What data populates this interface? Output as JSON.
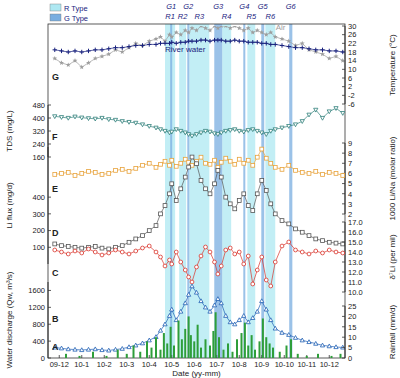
{
  "chart_data": [
    {
      "type": "line",
      "label": "G",
      "x": [
        -0.2,
        0.1,
        0.4,
        0.7,
        1.0,
        1.3,
        1.6,
        1.9,
        2.2,
        2.5,
        2.8,
        3.1,
        3.4,
        3.7,
        4.0,
        4.3,
        4.5,
        4.7,
        4.9,
        5.0,
        5.2,
        5.4,
        5.6,
        5.75,
        5.9,
        6.1,
        6.3,
        6.5,
        6.7,
        6.9,
        7.05,
        7.2,
        7.4,
        7.6,
        7.8,
        8.0,
        8.2,
        8.4,
        8.6,
        8.8,
        9.0,
        9.2,
        9.4,
        9.6,
        9.9,
        10.2,
        10.5,
        10.8,
        11.1,
        11.4,
        11.7,
        12.0,
        12.3,
        12.6
      ],
      "xlim": [
        -0.5,
        12.7
      ],
      "y2lim": [
        -6,
        30
      ],
      "y2ticks": [
        -6,
        -2,
        2,
        6,
        10,
        14,
        18,
        22,
        26,
        30
      ],
      "y2label": "Temperature (°C)",
      "tick_labels": "y",
      "legend": "upper left",
      "band_types": [
        {
          "name": "R Type",
          "color": "#aee8f2"
        },
        {
          "name": "G Type",
          "color": "#79aee0"
        }
      ],
      "bands": [
        {
          "label": "R1",
          "kind": "R Type",
          "x0": 4.7,
          "x1": 5.15
        },
        {
          "label": "R2",
          "kind": "R Type",
          "x0": 5.33,
          "x1": 5.64
        },
        {
          "label": "R3",
          "kind": "R Type",
          "x0": 5.78,
          "x1": 6.67
        },
        {
          "label": "R4",
          "kind": "R Type",
          "x0": 7.24,
          "x1": 7.64
        },
        {
          "label": "R5",
          "kind": "R Type",
          "x0": 8.36,
          "x1": 8.71
        },
        {
          "label": "R6",
          "kind": "R Type",
          "x0": 9.16,
          "x1": 9.6
        },
        {
          "label": "G1",
          "kind": "G Type",
          "x0": 4.93,
          "x1": 5.02
        },
        {
          "label": "G2",
          "kind": "G Type",
          "x0": 5.69,
          "x1": 5.78
        },
        {
          "label": "G3",
          "kind": "G Type",
          "x0": 6.89,
          "x1": 7.24
        },
        {
          "label": "G4",
          "kind": "G Type",
          "x0": 8.18,
          "x1": 8.27
        },
        {
          "label": "G5",
          "kind": "G Type",
          "x0": 8.98,
          "x1": 9.11
        },
        {
          "label": "G6",
          "kind": "G Type",
          "x0": 10.22,
          "x1": 10.36
        }
      ],
      "series": [
        {
          "name": "Air",
          "color": "#9e9e9e",
          "marker": "star",
          "axis": "y2",
          "values": [
            15,
            13,
            12,
            14,
            11,
            13,
            15,
            16,
            17,
            19,
            18,
            20,
            22,
            21,
            23,
            24,
            25,
            23,
            26,
            25,
            27,
            26,
            28,
            27,
            29,
            28,
            30,
            29,
            28,
            30,
            29,
            30,
            30,
            29,
            30,
            29,
            28,
            29,
            27,
            28,
            27,
            26,
            27,
            25,
            24,
            23,
            21,
            22,
            19,
            18,
            17,
            15,
            16,
            14
          ]
        },
        {
          "name": "River water",
          "color": "#1a237e",
          "marker": "cross",
          "axis": "y2",
          "values": [
            19,
            18.5,
            18,
            18.5,
            18,
            18.5,
            19,
            19,
            19.5,
            20,
            20,
            20.5,
            21,
            21,
            21.5,
            21.5,
            22,
            22,
            22,
            22.5,
            22,
            22.5,
            22.5,
            23,
            23,
            23,
            23.5,
            23.5,
            23,
            23.5,
            23.5,
            23.5,
            23,
            23,
            23.5,
            23,
            23,
            22.5,
            22.5,
            22.5,
            22,
            22,
            21.5,
            21.5,
            21,
            20.5,
            20,
            20,
            19.5,
            19,
            19,
            18.5,
            18.5,
            18
          ]
        }
      ]
    },
    {
      "type": "line",
      "label": "F",
      "x": [
        -0.2,
        0.1,
        0.4,
        0.7,
        1.0,
        1.3,
        1.6,
        1.9,
        2.2,
        2.5,
        2.8,
        3.1,
        3.4,
        3.7,
        4.0,
        4.3,
        4.5,
        4.7,
        4.9,
        5.0,
        5.2,
        5.4,
        5.6,
        5.75,
        5.9,
        6.1,
        6.3,
        6.5,
        6.7,
        6.9,
        7.05,
        7.2,
        7.4,
        7.6,
        7.8,
        8.0,
        8.2,
        8.4,
        8.6,
        8.8,
        9.0,
        9.2,
        9.4,
        9.6,
        9.9,
        10.2,
        10.5,
        10.8,
        11.1,
        11.4,
        11.7,
        12.0,
        12.3,
        12.6
      ],
      "xlim": [
        -0.5,
        12.7
      ],
      "ylim": [
        160,
        480
      ],
      "yticks": [
        160,
        240,
        320,
        400,
        480
      ],
      "ylabel": "TDS (mg/L)",
      "tick_labels": "y",
      "series": [
        {
          "color": "#2f7f7a",
          "marker": "triangle-down",
          "values": [
            410,
            405,
            400,
            408,
            402,
            398,
            395,
            400,
            392,
            388,
            380,
            375,
            370,
            360,
            350,
            340,
            330,
            320,
            310,
            315,
            330,
            320,
            310,
            300,
            290,
            300,
            310,
            320,
            315,
            305,
            300,
            310,
            320,
            325,
            330,
            320,
            315,
            325,
            330,
            320,
            310,
            300,
            320,
            330,
            340,
            350,
            360,
            380,
            420,
            450,
            400,
            440,
            460,
            430
          ]
        }
      ]
    },
    {
      "type": "line",
      "label": "E",
      "x": [
        -0.2,
        0.1,
        0.4,
        0.7,
        1.0,
        1.3,
        1.6,
        1.9,
        2.2,
        2.5,
        2.8,
        3.1,
        3.4,
        3.7,
        4.0,
        4.3,
        4.5,
        4.7,
        4.9,
        5.0,
        5.2,
        5.4,
        5.6,
        5.75,
        5.9,
        6.1,
        6.3,
        6.5,
        6.7,
        6.9,
        7.05,
        7.2,
        7.4,
        7.6,
        7.8,
        8.0,
        8.2,
        8.4,
        8.6,
        8.8,
        9.0,
        9.2,
        9.4,
        9.6,
        9.9,
        10.2,
        10.5,
        10.8,
        11.1,
        11.4,
        11.7,
        12.0,
        12.3,
        12.6
      ],
      "xlim": [
        -0.5,
        12.7
      ],
      "y2lim": [
        2,
        9
      ],
      "y2ticks": [
        2,
        3,
        4,
        5,
        6,
        7,
        8,
        9
      ],
      "y2label": "1000 Li/Na (molar ratio)",
      "tick_labels": "y",
      "series": [
        {
          "color": "#e8a33c",
          "marker": "square",
          "axis": "y2",
          "values": [
            5.9,
            6.0,
            6.1,
            5.8,
            6.0,
            6.2,
            6.1,
            5.9,
            6.0,
            6.3,
            6.4,
            6.2,
            6.5,
            6.8,
            7.0,
            6.6,
            6.9,
            7.2,
            6.8,
            7.3,
            6.7,
            7.0,
            7.4,
            7.1,
            6.8,
            7.2,
            7.6,
            7.0,
            6.9,
            7.3,
            6.6,
            7.1,
            7.5,
            7.2,
            6.9,
            7.4,
            7.0,
            7.3,
            6.8,
            7.6,
            8.4,
            7.5,
            7.0,
            6.6,
            6.4,
            6.8,
            6.3,
            6.1,
            6.0,
            6.2,
            5.9,
            6.1,
            6.0,
            5.8
          ]
        }
      ]
    },
    {
      "type": "line",
      "label": "D",
      "x": [
        -0.2,
        0.1,
        0.4,
        0.7,
        1.0,
        1.3,
        1.6,
        1.9,
        2.2,
        2.5,
        2.8,
        3.1,
        3.4,
        3.7,
        4.0,
        4.3,
        4.5,
        4.7,
        4.9,
        5.0,
        5.2,
        5.4,
        5.6,
        5.75,
        5.9,
        6.1,
        6.3,
        6.5,
        6.7,
        6.9,
        7.05,
        7.2,
        7.4,
        7.6,
        7.8,
        8.0,
        8.2,
        8.4,
        8.6,
        8.8,
        9.0,
        9.2,
        9.4,
        9.6,
        9.9,
        10.2,
        10.5,
        10.8,
        11.1,
        11.4,
        11.7,
        12.0,
        12.3,
        12.6
      ],
      "xlim": [
        -0.5,
        12.7
      ],
      "ylim": [
        0,
        700
      ],
      "yticks": [
        100,
        200,
        300,
        400
      ],
      "ylabel": "Li flux (mg/d)",
      "tick_labels": "y",
      "series": [
        {
          "color": "#555555",
          "marker": "square",
          "values": [
            120,
            110,
            105,
            100,
            95,
            100,
            105,
            95,
            90,
            100,
            110,
            130,
            150,
            170,
            200,
            230,
            300,
            350,
            420,
            480,
            380,
            450,
            520,
            580,
            640,
            600,
            500,
            450,
            420,
            480,
            560,
            520,
            400,
            360,
            330,
            380,
            420,
            350,
            320,
            420,
            500,
            440,
            360,
            300,
            260,
            240,
            210,
            190,
            170,
            150,
            140,
            130,
            125,
            120
          ]
        }
      ]
    },
    {
      "type": "line",
      "label": "C",
      "x": [
        -0.2,
        0.1,
        0.4,
        0.7,
        1.0,
        1.3,
        1.6,
        1.9,
        2.2,
        2.5,
        2.8,
        3.1,
        3.4,
        3.7,
        4.0,
        4.3,
        4.5,
        4.7,
        4.9,
        5.0,
        5.2,
        5.4,
        5.6,
        5.75,
        5.9,
        6.1,
        6.3,
        6.5,
        6.7,
        6.9,
        7.05,
        7.2,
        7.4,
        7.6,
        7.8,
        8.0,
        8.2,
        8.4,
        8.6,
        8.8,
        9.0,
        9.2,
        9.4,
        9.6,
        9.9,
        10.2,
        10.5,
        10.8,
        11.1,
        11.4,
        11.7,
        12.0,
        12.3,
        12.6
      ],
      "xlim": [
        -0.5,
        12.7
      ],
      "y2lim": [
        10,
        17
      ],
      "y2ticks": [
        {
          "value": 10,
          "label": "10.0"
        },
        {
          "value": 11,
          "label": "11.0"
        },
        {
          "value": 12,
          "label": "12.0"
        },
        {
          "value": 13,
          "label": "13.0"
        },
        {
          "value": 14,
          "label": "14.0"
        },
        {
          "value": 15,
          "label": "15.0"
        },
        {
          "value": 16,
          "label": "16.0"
        },
        {
          "value": 17,
          "label": "17.0"
        }
      ],
      "y2label": "δ⁷Li (per mil)",
      "tick_labels": "y",
      "series": [
        {
          "color": "#d9342b",
          "marker": "circle",
          "axis": "y2",
          "values": [
            14.2,
            14.0,
            13.8,
            14.1,
            13.9,
            14.3,
            14.0,
            13.7,
            13.9,
            14.2,
            14.0,
            13.8,
            14.1,
            14.4,
            14.6,
            14.0,
            13.5,
            12.6,
            13.2,
            12.8,
            14.0,
            13.0,
            12.2,
            11.5,
            11.0,
            12.5,
            13.6,
            14.5,
            14.0,
            13.0,
            11.8,
            12.6,
            14.2,
            14.4,
            13.8,
            14.0,
            12.8,
            13.6,
            10.8,
            12.2,
            13.5,
            11.2,
            10.6,
            13.0,
            14.6,
            15.0,
            14.2,
            14.0,
            13.8,
            14.1,
            13.9,
            14.2,
            14.0,
            13.9
          ]
        }
      ]
    },
    {
      "type": "line",
      "label": "B",
      "x": [
        -0.2,
        0.1,
        0.4,
        0.7,
        1.0,
        1.3,
        1.6,
        1.9,
        2.2,
        2.5,
        2.8,
        3.1,
        3.4,
        3.7,
        4.0,
        4.3,
        4.5,
        4.7,
        4.9,
        5.0,
        5.2,
        5.4,
        5.6,
        5.75,
        5.9,
        6.1,
        6.3,
        6.5,
        6.7,
        6.9,
        7.05,
        7.2,
        7.4,
        7.6,
        7.8,
        8.0,
        8.2,
        8.4,
        8.6,
        8.8,
        9.0,
        9.2,
        9.4,
        9.6,
        9.9,
        10.2,
        10.5,
        10.8,
        11.1,
        11.4,
        11.7,
        12.0,
        12.3,
        12.6
      ],
      "xlim": [
        -0.5,
        12.7
      ],
      "ylim": [
        0,
        1800
      ],
      "yticks": [
        0,
        400,
        800,
        1200,
        1600
      ],
      "ylabel": "Water discharge (Qw, m³/s)",
      "tick_labels": "y",
      "series": [
        {
          "color": "#1f5fb4",
          "marker": "triangle",
          "values": [
            250,
            230,
            210,
            200,
            190,
            200,
            210,
            190,
            180,
            200,
            220,
            260,
            300,
            350,
            420,
            500,
            650,
            800,
            1000,
            1150,
            900,
            1100,
            1300,
            1500,
            1700,
            1550,
            1350,
            1200,
            1100,
            1250,
            1400,
            1300,
            1000,
            850,
            800,
            900,
            1000,
            850,
            950,
            1100,
            1350,
            1150,
            900,
            700,
            600,
            550,
            480,
            420,
            380,
            340,
            300,
            280,
            260,
            250
          ]
        }
      ]
    },
    {
      "type": "bar",
      "label": "A",
      "x": [
        0.3,
        0.9,
        1.5,
        2.1,
        2.6,
        3.0,
        3.3,
        3.6,
        3.9,
        4.1,
        4.3,
        4.5,
        4.65,
        4.8,
        4.95,
        5.1,
        5.3,
        5.45,
        5.6,
        5.75,
        5.85,
        6.0,
        6.15,
        6.3,
        6.5,
        6.7,
        6.85,
        6.95,
        7.1,
        7.3,
        7.5,
        7.7,
        7.9,
        8.1,
        8.25,
        8.4,
        8.55,
        8.7,
        8.9,
        9.05,
        9.2,
        9.35,
        9.5,
        9.8,
        10.1,
        10.3,
        10.6,
        11.0,
        11.5,
        12.1,
        12.5
      ],
      "xlim": [
        -0.5,
        12.7
      ],
      "xticks": [
        {
          "value": 0,
          "label": "09-12"
        },
        {
          "value": 1,
          "label": "10-1"
        },
        {
          "value": 2,
          "label": "10-2"
        },
        {
          "value": 3,
          "label": "10-3"
        },
        {
          "value": 4,
          "label": "10-4"
        },
        {
          "value": 5,
          "label": "10-5"
        },
        {
          "value": 6,
          "label": "10-6"
        },
        {
          "value": 7,
          "label": "10-7"
        },
        {
          "value": 8,
          "label": "10-8"
        },
        {
          "value": 9,
          "label": "10-9"
        },
        {
          "value": 10,
          "label": "10-10"
        },
        {
          "value": 11,
          "label": "10-11"
        },
        {
          "value": 12,
          "label": "10-12"
        }
      ],
      "xlabel": "Date (yy-mm)",
      "y2lim": [
        0,
        25
      ],
      "y2ticks": [
        0,
        5,
        10,
        15,
        20,
        25
      ],
      "y2label": "Rainfall (mm/d)",
      "series": [
        {
          "color": "#2e9e3a",
          "axis": "y2",
          "values": [
            2,
            1,
            3,
            1,
            4,
            2,
            6,
            3,
            8,
            5,
            10,
            4,
            12,
            7,
            15,
            6,
            18,
            9,
            14,
            20,
            11,
            8,
            16,
            5,
            9,
            6,
            13,
            22,
            10,
            4,
            7,
            3,
            9,
            12,
            17,
            6,
            11,
            4,
            8,
            19,
            10,
            7,
            5,
            3,
            6,
            9,
            2,
            1,
            2,
            1,
            2
          ]
        }
      ]
    }
  ]
}
